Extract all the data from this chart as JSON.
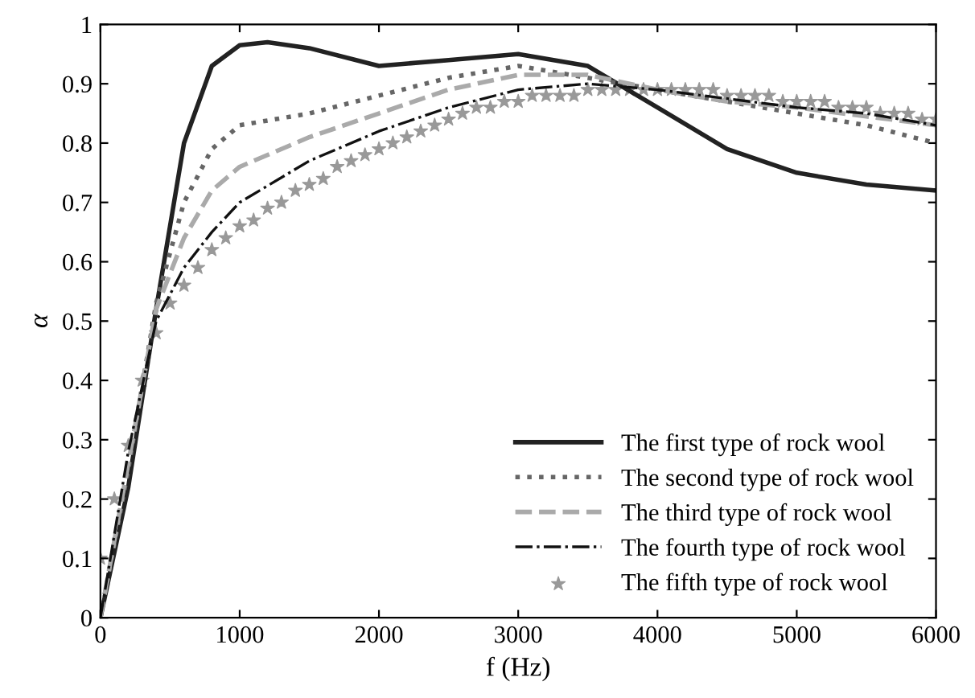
{
  "chart_data": {
    "type": "line",
    "xlabel": "f (Hz)",
    "ylabel": "α",
    "xlim": [
      0,
      6000
    ],
    "ylim": [
      0,
      1
    ],
    "xticks": [
      0,
      1000,
      2000,
      3000,
      4000,
      5000,
      6000
    ],
    "yticks": [
      0,
      0.1,
      0.2,
      0.3,
      0.4,
      0.5,
      0.6,
      0.7,
      0.8,
      0.9,
      1
    ],
    "grid": false,
    "legend": "bottom right",
    "series": [
      {
        "name": "The first type of rock wool",
        "color": "#222222",
        "line_style": "solid",
        "x": [
          0,
          200,
          400,
          600,
          800,
          1000,
          1200,
          1500,
          2000,
          2500,
          3000,
          3500,
          4000,
          4500,
          5000,
          5500,
          6000
        ],
        "values": [
          0,
          0.22,
          0.52,
          0.8,
          0.93,
          0.965,
          0.97,
          0.96,
          0.93,
          0.94,
          0.95,
          0.93,
          0.86,
          0.79,
          0.75,
          0.73,
          0.72
        ]
      },
      {
        "name": "The second type of rock wool",
        "color": "#666666",
        "line_style": "dotted",
        "x": [
          0,
          200,
          400,
          600,
          800,
          1000,
          1500,
          2000,
          2500,
          3000,
          3500,
          4000,
          4500,
          5000,
          5500,
          6000
        ],
        "values": [
          0,
          0.25,
          0.53,
          0.7,
          0.79,
          0.83,
          0.85,
          0.88,
          0.91,
          0.93,
          0.91,
          0.89,
          0.87,
          0.85,
          0.83,
          0.8
        ]
      },
      {
        "name": "The third type of rock wool",
        "color": "#aaaaaa",
        "line_style": "dashed",
        "x": [
          0,
          200,
          400,
          600,
          800,
          1000,
          1500,
          2000,
          2500,
          3000,
          3500,
          4000,
          4500,
          5000,
          5500,
          6000
        ],
        "values": [
          0,
          0.26,
          0.52,
          0.64,
          0.72,
          0.76,
          0.81,
          0.85,
          0.89,
          0.915,
          0.915,
          0.89,
          0.87,
          0.86,
          0.845,
          0.83
        ]
      },
      {
        "name": "The fourth type of rock wool",
        "color": "#111111",
        "line_style": "dashdot",
        "x": [
          0,
          200,
          400,
          600,
          800,
          1000,
          1500,
          2000,
          2500,
          3000,
          3500,
          4000,
          4500,
          5000,
          5500,
          6000
        ],
        "values": [
          0,
          0.28,
          0.5,
          0.59,
          0.65,
          0.7,
          0.77,
          0.82,
          0.86,
          0.89,
          0.9,
          0.89,
          0.875,
          0.86,
          0.85,
          0.83
        ]
      },
      {
        "name": "The fifth type of rock wool",
        "color": "#999999",
        "type": "scatter",
        "marker": "star",
        "x": [
          0,
          100,
          200,
          300,
          400,
          500,
          600,
          700,
          800,
          900,
          1000,
          1100,
          1200,
          1300,
          1400,
          1500,
          1600,
          1700,
          1800,
          1900,
          2000,
          2100,
          2200,
          2300,
          2400,
          2500,
          2600,
          2700,
          2800,
          2900,
          3000,
          3100,
          3200,
          3300,
          3400,
          3500,
          3600,
          3700,
          3800,
          3900,
          4000,
          4100,
          4200,
          4300,
          4400,
          4500,
          4600,
          4700,
          4800,
          4900,
          5000,
          5100,
          5200,
          5300,
          5400,
          5500,
          5600,
          5700,
          5800,
          5900,
          6000
        ],
        "values": [
          0.1,
          0.2,
          0.29,
          0.4,
          0.48,
          0.53,
          0.56,
          0.59,
          0.62,
          0.64,
          0.66,
          0.67,
          0.69,
          0.7,
          0.72,
          0.73,
          0.74,
          0.76,
          0.77,
          0.78,
          0.79,
          0.8,
          0.81,
          0.82,
          0.83,
          0.84,
          0.85,
          0.86,
          0.86,
          0.87,
          0.87,
          0.88,
          0.88,
          0.88,
          0.88,
          0.89,
          0.89,
          0.89,
          0.89,
          0.89,
          0.89,
          0.89,
          0.89,
          0.89,
          0.89,
          0.88,
          0.88,
          0.88,
          0.88,
          0.87,
          0.87,
          0.87,
          0.87,
          0.86,
          0.86,
          0.86,
          0.85,
          0.85,
          0.85,
          0.84,
          0.84
        ]
      }
    ]
  }
}
